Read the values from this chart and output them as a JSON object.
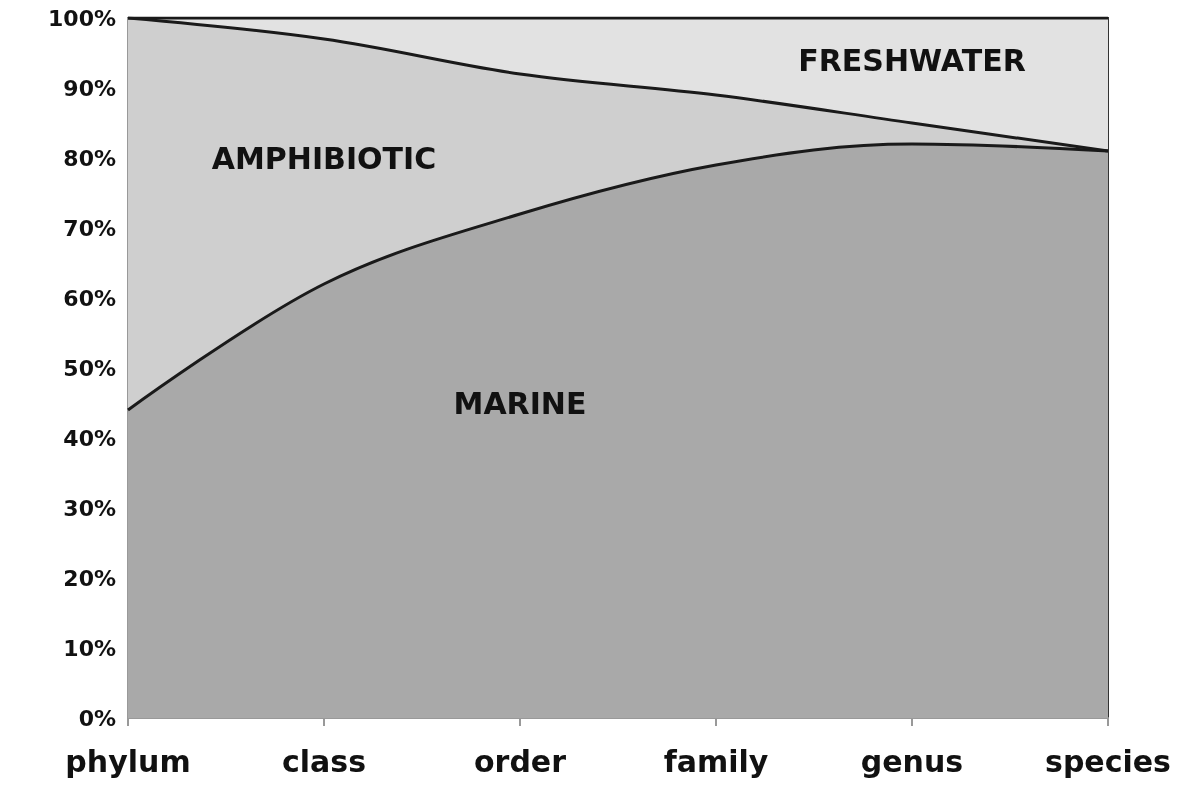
{
  "chart_data": {
    "type": "area",
    "stacked": true,
    "categories": [
      "phylum",
      "class",
      "order",
      "family",
      "genus",
      "species"
    ],
    "series": [
      {
        "name": "MARINE",
        "color": "#a9a9a9",
        "values": [
          44,
          62,
          72,
          79,
          82,
          81
        ]
      },
      {
        "name": "AMPHIBIOTIC",
        "color": "#cfcfcf",
        "values": [
          56,
          35,
          20,
          10,
          3,
          0
        ]
      },
      {
        "name": "FRESHWATER",
        "color": "#e2e2e2",
        "values": [
          0,
          3,
          8,
          11,
          15,
          19
        ]
      }
    ],
    "ylim": [
      0,
      100
    ],
    "yticks": [
      {
        "value": 0,
        "label": "0%"
      },
      {
        "value": 10,
        "label": "10%"
      },
      {
        "value": 20,
        "label": "20%"
      },
      {
        "value": 30,
        "label": "30%"
      },
      {
        "value": 40,
        "label": "40%"
      },
      {
        "value": 50,
        "label": "50%"
      },
      {
        "value": 60,
        "label": "60%"
      },
      {
        "value": 70,
        "label": "70%"
      },
      {
        "value": 80,
        "label": "80%"
      },
      {
        "value": 90,
        "label": "90%"
      },
      {
        "value": 100,
        "label": "100%"
      }
    ],
    "grid": false,
    "legend": false
  }
}
